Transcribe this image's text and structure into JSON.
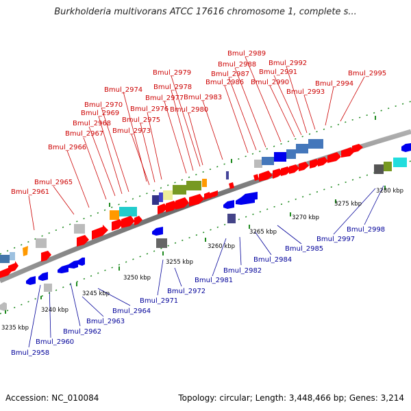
{
  "title": "Burkholderia multivorans ATCC 17616 chromosome 1, complete s...",
  "footer": {
    "accession": "Accession: NC_010084",
    "topology": "Topology: circular; Length: 3,448,466 bp; Genes: 3,214"
  },
  "colors": {
    "backbone": "#808080",
    "top_label": "#cc0000",
    "bottom_label": "#000099",
    "gene_red": "#ff0000",
    "gene_blue": "#0000ee",
    "ruler_dots": "#1e8a1e"
  },
  "scale_labels": [
    "3235 kbp",
    "3240 kbp",
    "3245 kbp",
    "3250 kbp",
    "3255 kbp",
    "3260 kbp",
    "3265 kbp",
    "3270 kbp",
    "3275 kbp",
    "3280 kbp"
  ],
  "top_labels": [
    "Bmul_2961",
    "Bmul_2965",
    "Bmul_2966",
    "Bmul_2967",
    "Bmul_2968",
    "Bmul_2969",
    "Bmul_2970",
    "Bmul_2973",
    "Bmul_2974",
    "Bmul_2975",
    "Bmul_2976",
    "Bmul_2977",
    "Bmul_2978",
    "Bmul_2979",
    "Bmul_2980",
    "Bmul_2983",
    "Bmul_2986",
    "Bmul_2987",
    "Bmul_2988",
    "Bmul_2989",
    "Bmul_2990",
    "Bmul_2991",
    "Bmul_2992",
    "Bmul_2993",
    "Bmul_2994",
    "Bmul_2995"
  ],
  "bottom_labels": [
    "Bmul_2958",
    "Bmul_2960",
    "Bmul_2962",
    "Bmul_2963",
    "Bmul_2964",
    "Bmul_2971",
    "Bmul_2972",
    "Bmul_2981",
    "Bmul_2982",
    "Bmul_2984",
    "Bmul_2985",
    "Bmul_2997",
    "Bmul_2998"
  ]
}
